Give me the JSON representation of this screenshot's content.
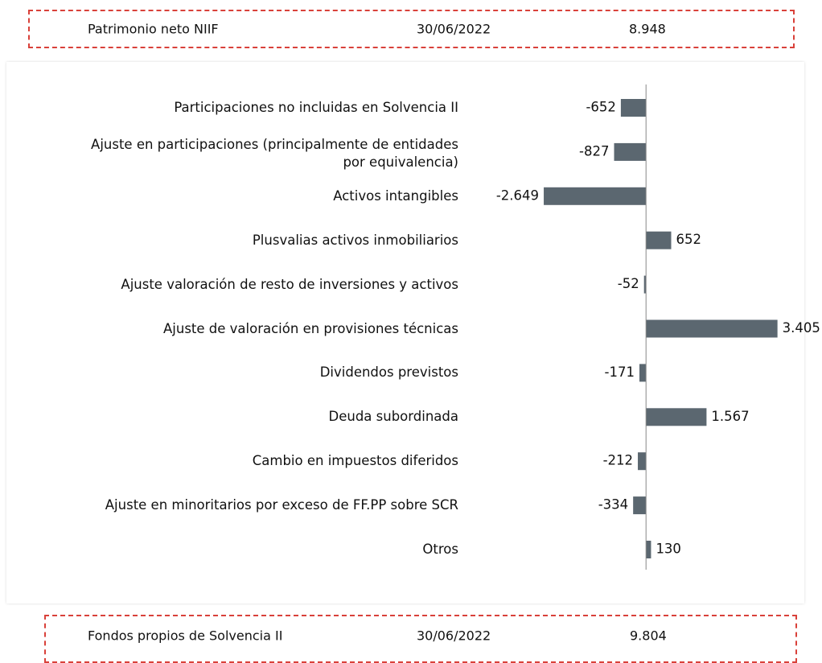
{
  "header": {
    "label": "Patrimonio neto NIIF",
    "date": "30/06/2022",
    "value": "8.948"
  },
  "footer": {
    "label": "Fondos propios de Solvencia II",
    "date": "30/06/2022",
    "value": "9.804"
  },
  "chart_data": {
    "type": "bar",
    "orientation": "horizontal",
    "color": "#5b6770",
    "categories": [
      "Participaciones no incluidas en Solvencia II",
      "Ajuste en participaciones (principalmente de entidades\npor equivalencia)",
      "Activos intangibles",
      "Plusvalias activos inmobiliarios",
      "Ajuste valoración de resto de inversiones y activos",
      "Ajuste de valoración en provisiones técnicas",
      "Dividendos previstos",
      "Deuda subordinada",
      "Cambio en impuestos diferidos",
      "Ajuste en minoritarios por exceso de FF.PP sobre SCR",
      "Otros"
    ],
    "values": [
      -652,
      -827,
      -2649,
      652,
      -52,
      3405,
      -171,
      1567,
      -212,
      -334,
      130
    ],
    "value_labels": [
      "-652",
      "-827",
      "-2.649",
      "652",
      "-52",
      "3.405",
      "-171",
      "1.567",
      "-212",
      "-334",
      "130"
    ],
    "xlim": [
      -4650,
      4100
    ]
  }
}
